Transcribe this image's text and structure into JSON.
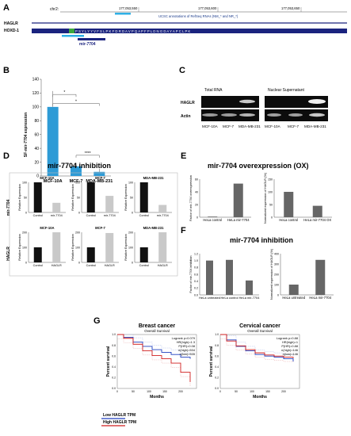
{
  "panels": {
    "A": {
      "letter": "A",
      "chrom": "chr2:",
      "coords": [
        "177,053,550",
        "177,053,600",
        "177,053,650"
      ],
      "track_label": "UCSC annotations of RefSeq RNAs (NM_* and NR_*)",
      "genes": [
        "HAGLR",
        "HOXD-1"
      ],
      "sequence": "P S Y L Y Y V F S L P K F D R D A V P Q A P F P L D N G D A Y A P C L P K",
      "mir_label": "mir-7704"
    },
    "B": {
      "letter": "B",
      "ylabel": "SF-mir-7704 expression",
      "yticks": [
        "0",
        "20",
        "40",
        "60",
        "80",
        "100",
        "120",
        "140"
      ],
      "sig": [
        "*",
        "*",
        "****"
      ],
      "chart_data": {
        "type": "bar",
        "categories": [
          "MCF-10A",
          "MCF-7",
          "MDA-MB-231"
        ],
        "values": [
          100,
          14,
          6
        ],
        "ylim": [
          0,
          140
        ],
        "color": "#2e9bd6"
      }
    },
    "C": {
      "letter": "C",
      "group1": "Total RNA",
      "group2": "Nuclear Supernatant",
      "rows": [
        "HAGLR",
        "Actin"
      ],
      "lanes": [
        "MCF-10A",
        "MCF-7",
        "MDA-MB-231"
      ]
    },
    "D": {
      "letter": "D",
      "title": "mir-7704 inhibition",
      "ylabel_top": "mir-7704",
      "ylabel_bottom": "HAGLR",
      "sub_ylabel": "Relative Expression",
      "charts": [
        {
          "cell": "MCF-10A",
          "categories": [
            "Control",
            "mir-7704"
          ],
          "values": [
            100,
            32
          ],
          "yticks": [
            "0",
            "50",
            "100"
          ]
        },
        {
          "cell": "MCF-7",
          "categories": [
            "Control",
            "mir-7704"
          ],
          "values": [
            100,
            55
          ],
          "yticks": [
            "0",
            "50",
            "100"
          ]
        },
        {
          "cell": "MDA-MB-231",
          "categories": [
            "Control",
            "mir-7704"
          ],
          "values": [
            100,
            25
          ],
          "yticks": [
            "0",
            "50",
            "100"
          ]
        },
        {
          "cell": "MCF-10A",
          "categories": [
            "Control",
            "HAGLR"
          ],
          "values": [
            100,
            235
          ],
          "yticks": [
            "0",
            "100",
            "200"
          ]
        },
        {
          "cell": "MCF-7",
          "categories": [
            "Control",
            "HAGLR"
          ],
          "values": [
            100,
            195
          ],
          "yticks": [
            "0",
            "100",
            "200"
          ]
        },
        {
          "cell": "MDA-MB-231",
          "categories": [
            "Control",
            "HAGLR"
          ],
          "values": [
            100,
            205
          ],
          "yticks": [
            "0",
            "100",
            "200"
          ]
        }
      ]
    },
    "E": {
      "letter": "E",
      "title": "mir-7704 overexpression (OX)",
      "charts": [
        {
          "ylabel": "Factor of mir-7704 overexpression",
          "categories": [
            "HeLa control",
            "HeLa mir-7704"
          ],
          "values": [
            1,
            53
          ],
          "yticks": [
            "0",
            "20",
            "40",
            "60"
          ],
          "ylim": [
            0,
            60
          ]
        },
        {
          "ylabel": "Normalized expression of HAGLR (%)",
          "categories": [
            "HeLa control",
            "HeLa mir-7704 OX"
          ],
          "values": [
            100,
            45
          ],
          "yticks": [
            "0",
            "50",
            "100",
            "150"
          ],
          "ylim": [
            0,
            150
          ]
        }
      ]
    },
    "F": {
      "letter": "F",
      "title": "mir-7704 inhibition",
      "charts": [
        {
          "ylabel": "Factor of mir-7704 inhibition",
          "categories": [
            "HeLa untreated",
            "HeLa control",
            "HeLa mir-7704"
          ],
          "values": [
            1.0,
            1.02,
            0.42
          ],
          "yticks": [
            "0.0",
            "0.2",
            "0.4",
            "0.6",
            "0.8",
            "1.0",
            "1.2"
          ],
          "ylim": [
            0,
            1.2
          ]
        },
        {
          "ylabel": "Normalized expression of HAGLR (%)",
          "categories": [
            "HeLa untreated",
            "HeLa mir-7704"
          ],
          "values": [
            100,
            340
          ],
          "yticks": [
            "0",
            "100",
            "200",
            "300",
            "400"
          ],
          "ylim": [
            0,
            400
          ]
        }
      ]
    },
    "G": {
      "letter": "G",
      "plots": [
        {
          "title": "Breast cancer",
          "subtitle": "Overall Survival",
          "stats": [
            "Logrank p=0.079",
            "HR(high)=1.3",
            "P(HR)=0.08",
            "n(high)=534",
            "n(low)=535"
          ]
        },
        {
          "title": "Cervical cancer",
          "subtitle": "Overall Survival",
          "stats": [
            "Logrank p=0.88",
            "HR(high)=1",
            "P(HR)=0.88",
            "n(high)=146",
            "n(low)=146"
          ]
        }
      ],
      "ylabel": "Percent survival",
      "xlabel": "Months",
      "legend": [
        {
          "label": "Low HAGLR TPM",
          "color": "#1f3fbf"
        },
        {
          "label": "High HAGLR TPM",
          "color": "#d11f1f"
        }
      ]
    }
  }
}
